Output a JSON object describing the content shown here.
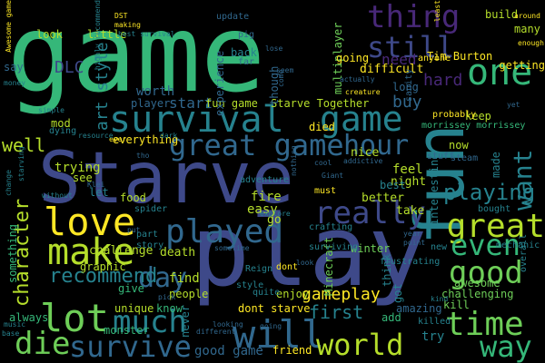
{
  "colors": {
    "background": "#000000",
    "palette": [
      "#fde725",
      "#b5de2b",
      "#6ece58",
      "#35b779",
      "#1f9e89",
      "#26828e",
      "#31688e",
      "#3e4989",
      "#482878",
      "#440154"
    ]
  },
  "words": [
    {
      "text": "game",
      "color": "#35b779"
    },
    {
      "text": "Starve",
      "color": "#3e4989"
    },
    {
      "text": "play",
      "color": "#3e4989"
    },
    {
      "text": "fun",
      "color": "#26828e"
    },
    {
      "text": "survival",
      "color": "#26828e"
    },
    {
      "text": "game",
      "color": "#26828e"
    },
    {
      "text": "great game",
      "color": "#31688e"
    },
    {
      "text": "hour",
      "color": "#31688e"
    },
    {
      "text": "thing",
      "color": "#482878"
    },
    {
      "text": "still",
      "color": "#3e4989"
    },
    {
      "text": "one",
      "color": "#35b779"
    },
    {
      "text": "want",
      "color": "#26828e"
    },
    {
      "text": "love",
      "color": "#fde725"
    },
    {
      "text": "played",
      "color": "#31688e"
    },
    {
      "text": "make",
      "color": "#b5de2b"
    },
    {
      "text": "day",
      "color": "#31688e"
    },
    {
      "text": "lot",
      "color": "#6ece58"
    },
    {
      "text": "much",
      "color": "#26828e"
    },
    {
      "text": "die",
      "color": "#6ece58"
    },
    {
      "text": "survive",
      "color": "#31688e"
    },
    {
      "text": "will",
      "color": "#31688e"
    },
    {
      "text": "world",
      "color": "#b5de2b"
    },
    {
      "text": "time",
      "color": "#6ece58"
    },
    {
      "text": "way",
      "color": "#35b779"
    },
    {
      "text": "really",
      "color": "#3e4989"
    },
    {
      "text": "great",
      "color": "#b5de2b"
    },
    {
      "text": "good",
      "color": "#6ece58"
    },
    {
      "text": "even",
      "color": "#35b779"
    },
    {
      "text": "playing",
      "color": "#26828e"
    },
    {
      "text": "character",
      "color": "#b5de2b"
    },
    {
      "text": "recommend",
      "color": "#26828e"
    },
    {
      "text": "art style",
      "color": "#26828e"
    },
    {
      "text": "worth",
      "color": "#31688e"
    },
    {
      "text": "DLC",
      "color": "#3e4989"
    },
    {
      "text": "need",
      "color": "#482878"
    },
    {
      "text": "hard",
      "color": "#482878"
    },
    {
      "text": "buy",
      "color": "#31688e"
    },
    {
      "text": "well",
      "color": "#b5de2b"
    },
    {
      "text": "start",
      "color": "#31688e"
    },
    {
      "text": "first",
      "color": "#26828e"
    },
    {
      "text": "gameplay",
      "color": "#fde725"
    },
    {
      "text": "fun game",
      "color": "#b5de2b"
    },
    {
      "text": "Starve Together",
      "color": "#b5de2b"
    },
    {
      "text": "multiplayer",
      "color": "#6ece58"
    },
    {
      "text": "Tim Burton",
      "color": "#fde725"
    },
    {
      "text": "difficult",
      "color": "#fde725"
    },
    {
      "text": "going",
      "color": "#fde725"
    },
    {
      "text": "good game",
      "color": "#31688e"
    },
    {
      "text": "dont starve",
      "color": "#fde725"
    },
    {
      "text": "friend",
      "color": "#fde725"
    },
    {
      "text": "everything",
      "color": "#fde725"
    },
    {
      "text": "challenge",
      "color": "#b5de2b"
    },
    {
      "text": "death",
      "color": "#b5de2b"
    },
    {
      "text": "find",
      "color": "#b5de2b"
    },
    {
      "text": "people",
      "color": "#b5de2b"
    },
    {
      "text": "enjoy",
      "color": "#b5de2b"
    },
    {
      "text": "graphic",
      "color": "#b5de2b"
    },
    {
      "text": "unique",
      "color": "#b5de2b"
    },
    {
      "text": "feel",
      "color": "#b5de2b"
    },
    {
      "text": "night",
      "color": "#b5de2b"
    },
    {
      "text": "better",
      "color": "#b5de2b"
    },
    {
      "text": "take",
      "color": "#b5de2b"
    },
    {
      "text": "fire",
      "color": "#b5de2b"
    },
    {
      "text": "easy",
      "color": "#b5de2b"
    },
    {
      "text": "go",
      "color": "#b5de2b"
    },
    {
      "text": "trying",
      "color": "#b5de2b"
    },
    {
      "text": "see",
      "color": "#b5de2b"
    },
    {
      "text": "food",
      "color": "#b5de2b"
    },
    {
      "text": "mod",
      "color": "#b5de2b"
    },
    {
      "text": "keep",
      "color": "#b5de2b"
    },
    {
      "text": "died",
      "color": "#fde725"
    },
    {
      "text": "nice",
      "color": "#b5de2b"
    },
    {
      "text": "now",
      "color": "#b5de2b"
    },
    {
      "text": "look",
      "color": "#b5de2b"
    },
    {
      "text": "little",
      "color": "#b5de2b"
    },
    {
      "text": "build",
      "color": "#b5de2b"
    },
    {
      "text": "many",
      "color": "#b5de2b"
    },
    {
      "text": "getting",
      "color": "#fde725"
    },
    {
      "text": "say",
      "color": "#31688e"
    },
    {
      "text": "player",
      "color": "#31688e"
    },
    {
      "text": "experience",
      "color": "#31688e"
    },
    {
      "text": "though",
      "color": "#31688e"
    },
    {
      "text": "long",
      "color": "#31688e"
    },
    {
      "text": "amazing",
      "color": "#31688e"
    },
    {
      "text": "kill",
      "color": "#6ece58"
    },
    {
      "text": "challenging",
      "color": "#6ece58"
    },
    {
      "text": "awesome",
      "color": "#6ece58"
    },
    {
      "text": "try",
      "color": "#26828e"
    },
    {
      "text": "think",
      "color": "#26828e"
    },
    {
      "text": "interesting",
      "color": "#26828e"
    },
    {
      "text": "Minecraft",
      "color": "#6ece58"
    },
    {
      "text": "winter",
      "color": "#6ece58"
    },
    {
      "text": "add",
      "color": "#35b779"
    },
    {
      "text": "give",
      "color": "#35b779"
    },
    {
      "text": "always",
      "color": "#35b779"
    },
    {
      "text": "monster",
      "color": "#35b779"
    },
    {
      "text": "something",
      "color": "#35b779"
    },
    {
      "text": "know",
      "color": "#35b779"
    },
    {
      "text": "never",
      "color": "#26828e"
    },
    {
      "text": "made",
      "color": "#26828e"
    },
    {
      "text": "got",
      "color": "#26828e"
    },
    {
      "text": "best",
      "color": "#26828e"
    },
    {
      "text": "let",
      "color": "#26828e"
    },
    {
      "text": "back",
      "color": "#26828e"
    },
    {
      "text": "update",
      "color": "#31688e"
    },
    {
      "text": "pig",
      "color": "#31688e"
    },
    {
      "text": "far",
      "color": "#31688e"
    },
    {
      "text": "sanity",
      "color": "#31688e"
    },
    {
      "text": "stuff",
      "color": "#31688e"
    },
    {
      "text": "steam",
      "color": "#31688e"
    },
    {
      "text": "probably",
      "color": "#fde725"
    },
    {
      "text": "anyone",
      "color": "#fde725"
    },
    {
      "text": "must",
      "color": "#fde725"
    },
    {
      "text": "morrissey morrissey",
      "color": "#35b779"
    },
    {
      "text": "dont",
      "color": "#fde725"
    },
    {
      "text": "Reign",
      "color": "#26828e"
    },
    {
      "text": "crafting",
      "color": "#26828e"
    },
    {
      "text": "surviving",
      "color": "#26828e"
    },
    {
      "text": "frustrating",
      "color": "#26828e"
    },
    {
      "text": "adventure",
      "color": "#26828e"
    },
    {
      "text": "spider",
      "color": "#26828e"
    },
    {
      "text": "dying",
      "color": "#26828e"
    },
    {
      "text": "part",
      "color": "#26828e"
    },
    {
      "text": "story",
      "color": "#26828e"
    },
    {
      "text": "quite",
      "color": "#26828e"
    },
    {
      "text": "style",
      "color": "#26828e"
    },
    {
      "text": "new",
      "color": "#26828e"
    },
    {
      "text": "overall",
      "color": "#26828e"
    },
    {
      "text": "mechanic",
      "color": "#26828e"
    },
    {
      "text": "bought",
      "color": "#26828e"
    },
    {
      "text": "killed",
      "color": "#26828e"
    },
    {
      "text": "highly recommend",
      "color": "#26828e"
    },
    {
      "text": "best survival",
      "color": "#26828e"
    },
    {
      "text": "Awesome game",
      "color": "#fde725"
    },
    {
      "text": "DST",
      "color": "#fde725"
    },
    {
      "text": "making",
      "color": "#fde725"
    },
    {
      "text": "ever",
      "color": "#fde725"
    },
    {
      "text": "enough",
      "color": "#fde725"
    },
    {
      "text": "around",
      "color": "#fde725"
    },
    {
      "text": "least",
      "color": "#fde725"
    },
    {
      "text": "creature",
      "color": "#fde725"
    },
    {
      "text": "simple",
      "color": "#26828e"
    },
    {
      "text": "money",
      "color": "#26828e"
    },
    {
      "text": "dark",
      "color": "#26828e"
    },
    {
      "text": "resource",
      "color": "#26828e"
    },
    {
      "text": "change",
      "color": "#26828e"
    },
    {
      "text": "starving",
      "color": "#26828e"
    },
    {
      "text": "without",
      "color": "#26828e"
    },
    {
      "text": "kind",
      "color": "#26828e"
    },
    {
      "text": "music",
      "color": "#26828e"
    },
    {
      "text": "base",
      "color": "#26828e"
    },
    {
      "text": "look",
      "color": "#31688e"
    },
    {
      "text": "explore",
      "color": "#26828e"
    },
    {
      "text": "cool",
      "color": "#31688e"
    },
    {
      "text": "Giant",
      "color": "#31688e"
    },
    {
      "text": "addictive",
      "color": "#31688e"
    },
    {
      "text": "yet",
      "color": "#31688e"
    },
    {
      "text": "sometime",
      "color": "#31688e"
    },
    {
      "text": "pick",
      "color": "#31688e"
    },
    {
      "text": "different",
      "color": "#31688e"
    },
    {
      "text": "looking",
      "color": "#31688e"
    },
    {
      "text": "going",
      "color": "#31688e"
    },
    {
      "text": "lose",
      "color": "#31688e"
    },
    {
      "text": "ye",
      "color": "#31688e"
    },
    {
      "text": "actually",
      "color": "#31688e"
    },
    {
      "text": "seem",
      "color": "#31688e"
    },
    {
      "text": "come",
      "color": "#31688e"
    },
    {
      "text": "nothing",
      "color": "#31688e"
    },
    {
      "text": "year",
      "color": "#31688e"
    },
    {
      "text": "point",
      "color": "#31688e"
    },
    {
      "text": "Klei",
      "color": "#31688e"
    },
    {
      "text": "tho",
      "color": "#31688e"
    },
    {
      "text": "put",
      "color": "#31688e"
    }
  ]
}
